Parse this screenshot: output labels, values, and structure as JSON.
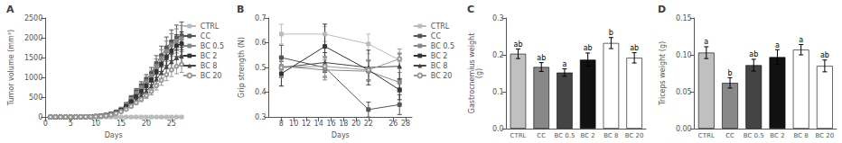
{
  "chart_data": [
    {
      "type": "line",
      "title": "A",
      "xlabel": "Days",
      "ylabel": "Tumor volume (mm³)",
      "x": [
        1,
        2,
        3,
        4,
        5,
        6,
        7,
        8,
        9,
        10,
        11,
        12,
        13,
        14,
        15,
        16,
        17,
        18,
        19,
        20,
        21,
        22,
        23,
        24,
        25,
        26,
        27
      ],
      "xlim": [
        0,
        27
      ],
      "xticks": [
        0,
        5,
        10,
        15,
        20,
        25
      ],
      "ylim": [
        0,
        2500
      ],
      "yticks": [
        0,
        500,
        1000,
        1500,
        2000,
        2500
      ],
      "grid": false,
      "legend": "right",
      "series": [
        {
          "name": "CTRL",
          "color": "#bbbbbb",
          "marker": "square",
          "values": [
            0,
            0,
            0,
            0,
            0,
            0,
            0,
            0,
            0,
            0,
            0,
            0,
            0,
            0,
            0,
            0,
            0,
            0,
            0,
            0,
            0,
            0,
            0,
            0,
            0,
            0,
            0
          ],
          "errors": [
            0,
            0,
            0,
            0,
            0,
            0,
            0,
            0,
            0,
            0,
            0,
            0,
            0,
            0,
            0,
            0,
            0,
            0,
            0,
            0,
            0,
            0,
            0,
            0,
            0,
            0,
            0
          ]
        },
        {
          "name": "CC",
          "color": "#555555",
          "marker": "square",
          "values": [
            0,
            0,
            0,
            0,
            0,
            2,
            4,
            6,
            10,
            18,
            30,
            50,
            80,
            130,
            200,
            320,
            480,
            640,
            790,
            950,
            1100,
            1350,
            1550,
            1750,
            1900,
            2000,
            2050
          ],
          "errors": [
            0,
            0,
            0,
            0,
            0,
            0,
            0,
            0,
            0,
            0,
            0,
            0,
            8,
            15,
            25,
            40,
            60,
            80,
            100,
            120,
            150,
            200,
            240,
            270,
            300,
            320,
            350
          ]
        },
        {
          "name": "BC 0.5",
          "color": "#888888",
          "marker": "square",
          "values": [
            0,
            0,
            0,
            0,
            0,
            2,
            4,
            6,
            10,
            18,
            30,
            50,
            80,
            130,
            195,
            305,
            450,
            600,
            740,
            890,
            1040,
            1280,
            1480,
            1660,
            1820,
            1920,
            1980
          ],
          "errors": [
            0,
            0,
            0,
            0,
            0,
            0,
            0,
            0,
            0,
            0,
            0,
            0,
            8,
            15,
            22,
            38,
            55,
            75,
            95,
            115,
            140,
            185,
            220,
            255,
            280,
            305,
            330
          ]
        },
        {
          "name": "BC 2",
          "color": "#333333",
          "marker": "square",
          "values": [
            0,
            0,
            0,
            0,
            0,
            2,
            4,
            6,
            10,
            18,
            28,
            45,
            72,
            115,
            175,
            270,
            390,
            520,
            650,
            790,
            940,
            1150,
            1340,
            1520,
            1670,
            1800,
            1850
          ],
          "errors": [
            0,
            0,
            0,
            0,
            0,
            0,
            0,
            0,
            0,
            0,
            0,
            0,
            7,
            13,
            20,
            32,
            48,
            65,
            82,
            100,
            120,
            155,
            190,
            220,
            250,
            275,
            300
          ]
        },
        {
          "name": "BC 8",
          "color": "#444444",
          "marker": "triangle",
          "values": [
            0,
            0,
            0,
            0,
            0,
            2,
            4,
            5,
            9,
            15,
            24,
            38,
            63,
            100,
            155,
            235,
            330,
            440,
            545,
            655,
            780,
            960,
            1120,
            1270,
            1390,
            1490,
            1530
          ],
          "errors": [
            0,
            0,
            0,
            0,
            0,
            0,
            0,
            0,
            0,
            0,
            0,
            0,
            6,
            10,
            16,
            26,
            38,
            52,
            65,
            80,
            98,
            125,
            150,
            175,
            195,
            215,
            235
          ]
        },
        {
          "name": "BC 20",
          "color": "#999999",
          "marker": "open_circle",
          "values": [
            0,
            0,
            0,
            0,
            0,
            2,
            3,
            5,
            8,
            13,
            21,
            33,
            55,
            88,
            135,
            195,
            270,
            360,
            445,
            540,
            645,
            790,
            930,
            1070,
            1190,
            1280,
            1330
          ],
          "errors": [
            0,
            0,
            0,
            0,
            0,
            0,
            0,
            0,
            0,
            0,
            0,
            0,
            5,
            9,
            14,
            22,
            32,
            45,
            56,
            70,
            85,
            108,
            130,
            152,
            170,
            188,
            205
          ]
        }
      ]
    },
    {
      "type": "line",
      "title": "B",
      "xlabel": "Days",
      "ylabel": "Grip strength (N)",
      "x": [
        8,
        15,
        22,
        27
      ],
      "xlim": [
        6,
        29
      ],
      "xticks": [
        8,
        10,
        12,
        14,
        16,
        18,
        20,
        22,
        26,
        28
      ],
      "ylim": [
        0.3,
        0.7
      ],
      "yticks": [
        0.3,
        0.4,
        0.5,
        0.6,
        0.7
      ],
      "grid": false,
      "legend": "right",
      "series": [
        {
          "name": "CTRL",
          "color": "#bbbbbb",
          "marker": "square",
          "values": [
            0.635,
            0.635,
            0.595,
            0.53
          ],
          "errors": [
            0.04,
            0.03,
            0.04,
            0.03
          ]
        },
        {
          "name": "CC",
          "color": "#555555",
          "marker": "square",
          "values": [
            0.54,
            0.5,
            0.33,
            0.35
          ],
          "errors": [
            0.05,
            0.04,
            0.03,
            0.04
          ]
        },
        {
          "name": "BC 0.5",
          "color": "#888888",
          "marker": "square",
          "values": [
            0.505,
            0.49,
            0.485,
            0.44
          ],
          "errors": [
            0.04,
            0.04,
            0.04,
            0.04
          ]
        },
        {
          "name": "BC 2",
          "color": "#333333",
          "marker": "square",
          "values": [
            0.475,
            0.585,
            0.49,
            0.41
          ],
          "errors": [
            0.05,
            0.09,
            0.04,
            0.04
          ]
        },
        {
          "name": "BC 8",
          "color": "#444444",
          "marker": "triangle",
          "values": [
            0.5,
            0.52,
            0.5,
            0.505
          ],
          "errors": [
            0.04,
            0.04,
            0.07,
            0.05
          ]
        },
        {
          "name": "BC 20",
          "color": "#999999",
          "marker": "open_circle",
          "values": [
            0.5,
            0.505,
            0.49,
            0.535
          ],
          "errors": [
            0.04,
            0.04,
            0.04,
            0.04
          ]
        }
      ]
    },
    {
      "type": "bar",
      "title": "C",
      "ylabel": "Gastrocnemius weight\n(g)",
      "categories": [
        "CTRL",
        "CC",
        "BC 0.5",
        "BC 2",
        "BC 8",
        "BC 20"
      ],
      "values": [
        0.203,
        0.167,
        0.152,
        0.187,
        0.232,
        0.192
      ],
      "errors": [
        0.013,
        0.012,
        0.01,
        0.018,
        0.015,
        0.014
      ],
      "colors": [
        "#c0c0c0",
        "#888888",
        "#444444",
        "#111111",
        "#ffffff",
        "#ffffff"
      ],
      "annotations": [
        "ab",
        "ab",
        "a",
        "ab",
        "b",
        "ab"
      ],
      "ylim": [
        0.0,
        0.3
      ],
      "yticks": [
        {
          "value": 0.0,
          "label": "0.0"
        },
        0.1,
        0.2,
        0.3
      ],
      "grid": false
    },
    {
      "type": "bar",
      "title": "D",
      "ylabel": "Triceps weight (g)",
      "categories": [
        "CTRL",
        "CC",
        "BC 0.5",
        "BC 2",
        "BC 8",
        "BC 20"
      ],
      "values": [
        0.103,
        0.062,
        0.086,
        0.097,
        0.107,
        0.085
      ],
      "errors": [
        0.008,
        0.007,
        0.008,
        0.01,
        0.007,
        0.008
      ],
      "colors": [
        "#c0c0c0",
        "#888888",
        "#444444",
        "#111111",
        "#ffffff",
        "#ffffff"
      ],
      "annotations": [
        "a",
        "b",
        "ab",
        "a",
        "a",
        "ab"
      ],
      "ylim": [
        0.0,
        0.15
      ],
      "yticks": [
        {
          "value": 0.0,
          "label": "0.00"
        },
        0.05,
        {
          "value": 0.1,
          "label": "0.10"
        },
        0.15
      ],
      "grid": false
    }
  ]
}
